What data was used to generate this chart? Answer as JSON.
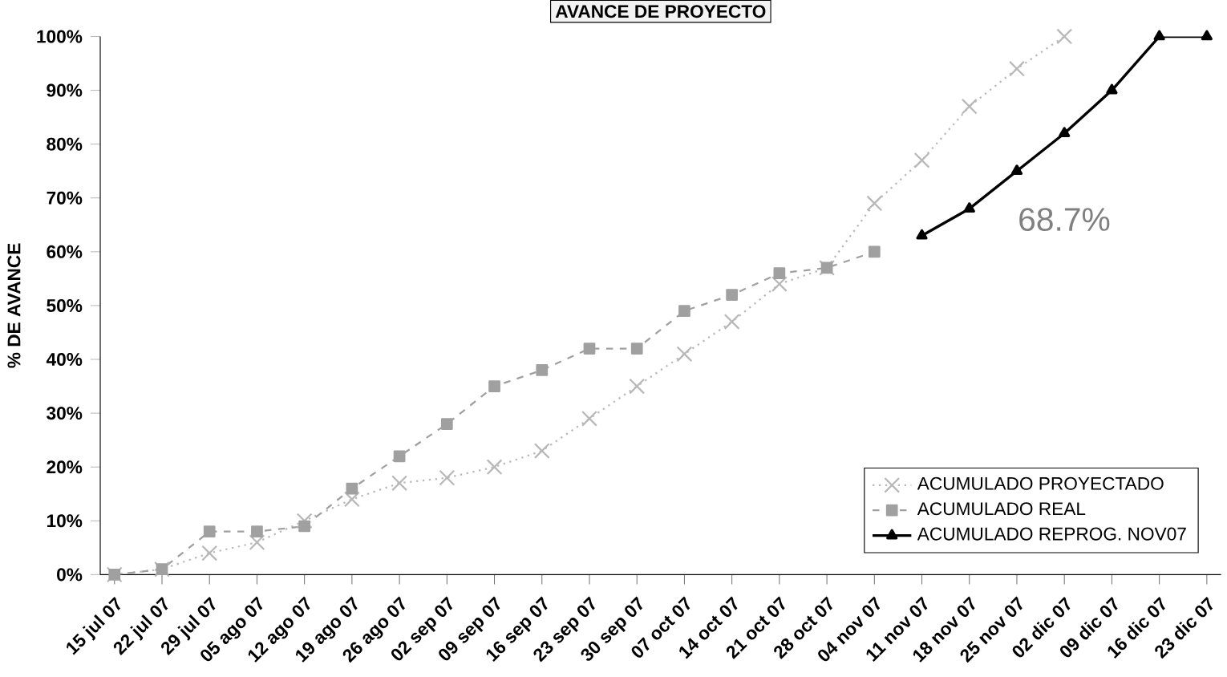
{
  "chart_data": {
    "type": "line",
    "title": "AVANCE DE PROYECTO",
    "ylabel": "% DE AVANCE",
    "categories": [
      "15 jul 07",
      "22 jul 07",
      "29 jul 07",
      "05 ago 07",
      "12 ago 07",
      "19 ago 07",
      "26 ago 07",
      "02 sep 07",
      "09 sep 07",
      "16 sep 07",
      "23 sep 07",
      "30 sep 07",
      "07 oct 07",
      "14 oct 07",
      "21 oct 07",
      "28 oct 07",
      "04 nov 07",
      "11 nov 07",
      "18 nov 07",
      "25 nov 07",
      "02 dic 07",
      "09 dic 07",
      "16 dic 07",
      "23 dic 07"
    ],
    "series": [
      {
        "name": "ACUMULADO PROYECTADO",
        "color": "#b8b8b8",
        "marker": "cross",
        "line_style": "dotted",
        "values": [
          0,
          1,
          4,
          6,
          10,
          14,
          17,
          18,
          20,
          23,
          29,
          35,
          41,
          47,
          54,
          57,
          69,
          77,
          87,
          94,
          100,
          null,
          null,
          null
        ]
      },
      {
        "name": "ACUMULADO REAL",
        "color": "#a0a0a0",
        "marker": "square",
        "line_style": "dashed",
        "values": [
          0,
          1,
          8,
          8,
          9,
          16,
          22,
          28,
          35,
          38,
          42,
          42,
          49,
          52,
          56,
          57,
          60,
          null,
          null,
          null,
          null,
          null,
          null,
          null
        ]
      },
      {
        "name": "ACUMULADO REPROG. NOV07",
        "color": "#000000",
        "marker": "triangle",
        "line_style": "solid",
        "values": [
          null,
          null,
          null,
          null,
          null,
          null,
          null,
          null,
          null,
          null,
          null,
          null,
          null,
          null,
          null,
          null,
          null,
          63,
          68,
          75,
          82,
          90,
          100,
          100
        ]
      }
    ],
    "ylim": [
      0,
      100
    ],
    "yticks": [
      {
        "value": 0,
        "label": "0%"
      },
      {
        "value": 10,
        "label": "10%"
      },
      {
        "value": 20,
        "label": "20%"
      },
      {
        "value": 30,
        "label": "30%"
      },
      {
        "value": 40,
        "label": "40%"
      },
      {
        "value": 50,
        "label": "50%"
      },
      {
        "value": 60,
        "label": "60%"
      },
      {
        "value": 70,
        "label": "70%"
      },
      {
        "value": 80,
        "label": "80%"
      },
      {
        "value": 90,
        "label": "90%"
      },
      {
        "value": 100,
        "label": "100%"
      }
    ],
    "annotations": [
      "68.7%"
    ],
    "legend": "bottom right",
    "grid": false
  }
}
